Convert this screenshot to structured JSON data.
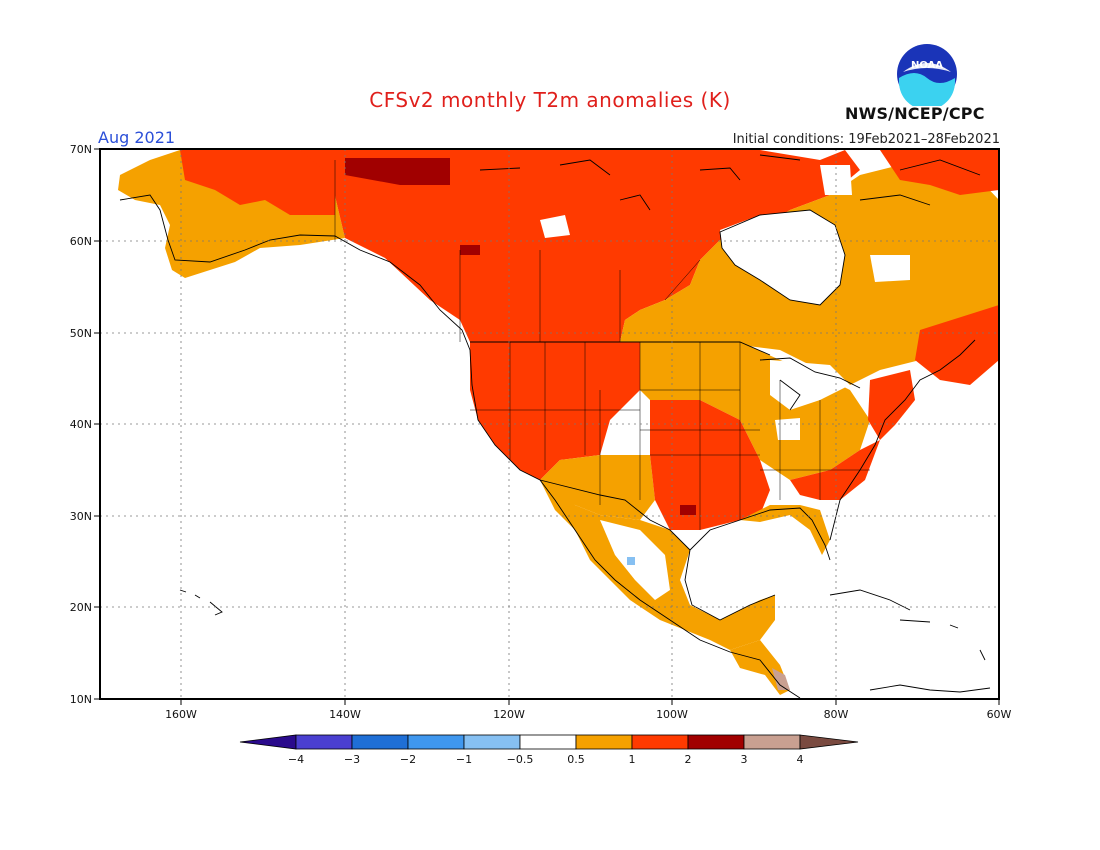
{
  "title": "CFSv2 monthly T2m anomalies (K)",
  "valid_month": "Aug 2021",
  "initial_conditions": "Initial conditions: 19Feb2021–28Feb2021",
  "agency": "NWS/NCEP/CPC",
  "logo_text": "NOAA",
  "lat_labels": [
    "70N",
    "60N",
    "50N",
    "40N",
    "30N",
    "20N",
    "10N"
  ],
  "lon_labels": [
    "160W",
    "140W",
    "120W",
    "100W",
    "80W",
    "60W"
  ],
  "colorbar": {
    "labels": [
      "−4",
      "−3",
      "−2",
      "−1",
      "−0.5",
      "0.5",
      "1",
      "2",
      "3",
      "4"
    ],
    "colors": [
      "#2a0a8c",
      "#4a3fd0",
      "#1f6fd6",
      "#3f97ee",
      "#86c0f2",
      "#ffffff",
      "#f5a100",
      "#ff3a00",
      "#a10000",
      "#c9a091",
      "#7a4a40"
    ]
  }
}
